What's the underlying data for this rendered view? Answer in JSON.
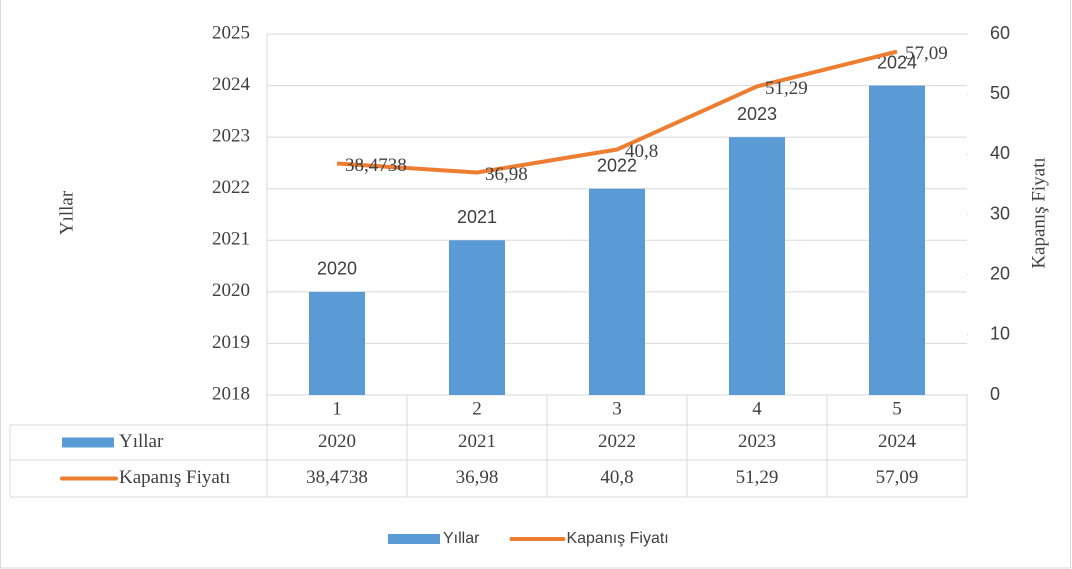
{
  "chart_data": {
    "type": "bar-line",
    "categories": [
      "1",
      "2",
      "3",
      "4",
      "5"
    ],
    "ylabel": "Yıllar",
    "y2label": "Kapanış Fiyatı",
    "ylim": [
      2018,
      2025
    ],
    "yticks": [
      2018,
      2019,
      2020,
      2021,
      2022,
      2023,
      2024,
      2025
    ],
    "y2lim": [
      0,
      60
    ],
    "y2ticks": [
      0,
      10,
      20,
      30,
      40,
      50,
      60
    ],
    "grid": true,
    "legend": "bottom",
    "data_table": true,
    "series": [
      {
        "name": "Yıllar",
        "type": "bar",
        "color": "#5b9bd5",
        "values": [
          2020,
          2021,
          2022,
          2023,
          2024
        ]
      },
      {
        "name": "Kapanış Fiyatı",
        "type": "line",
        "axis": "y2",
        "color": "#ed7d31",
        "values": [
          38.4738,
          36.98,
          40.8,
          51.29,
          57.09
        ],
        "value_labels": [
          "38,4738",
          "36,98",
          "40,8",
          "51,29",
          "57,09"
        ]
      }
    ]
  }
}
